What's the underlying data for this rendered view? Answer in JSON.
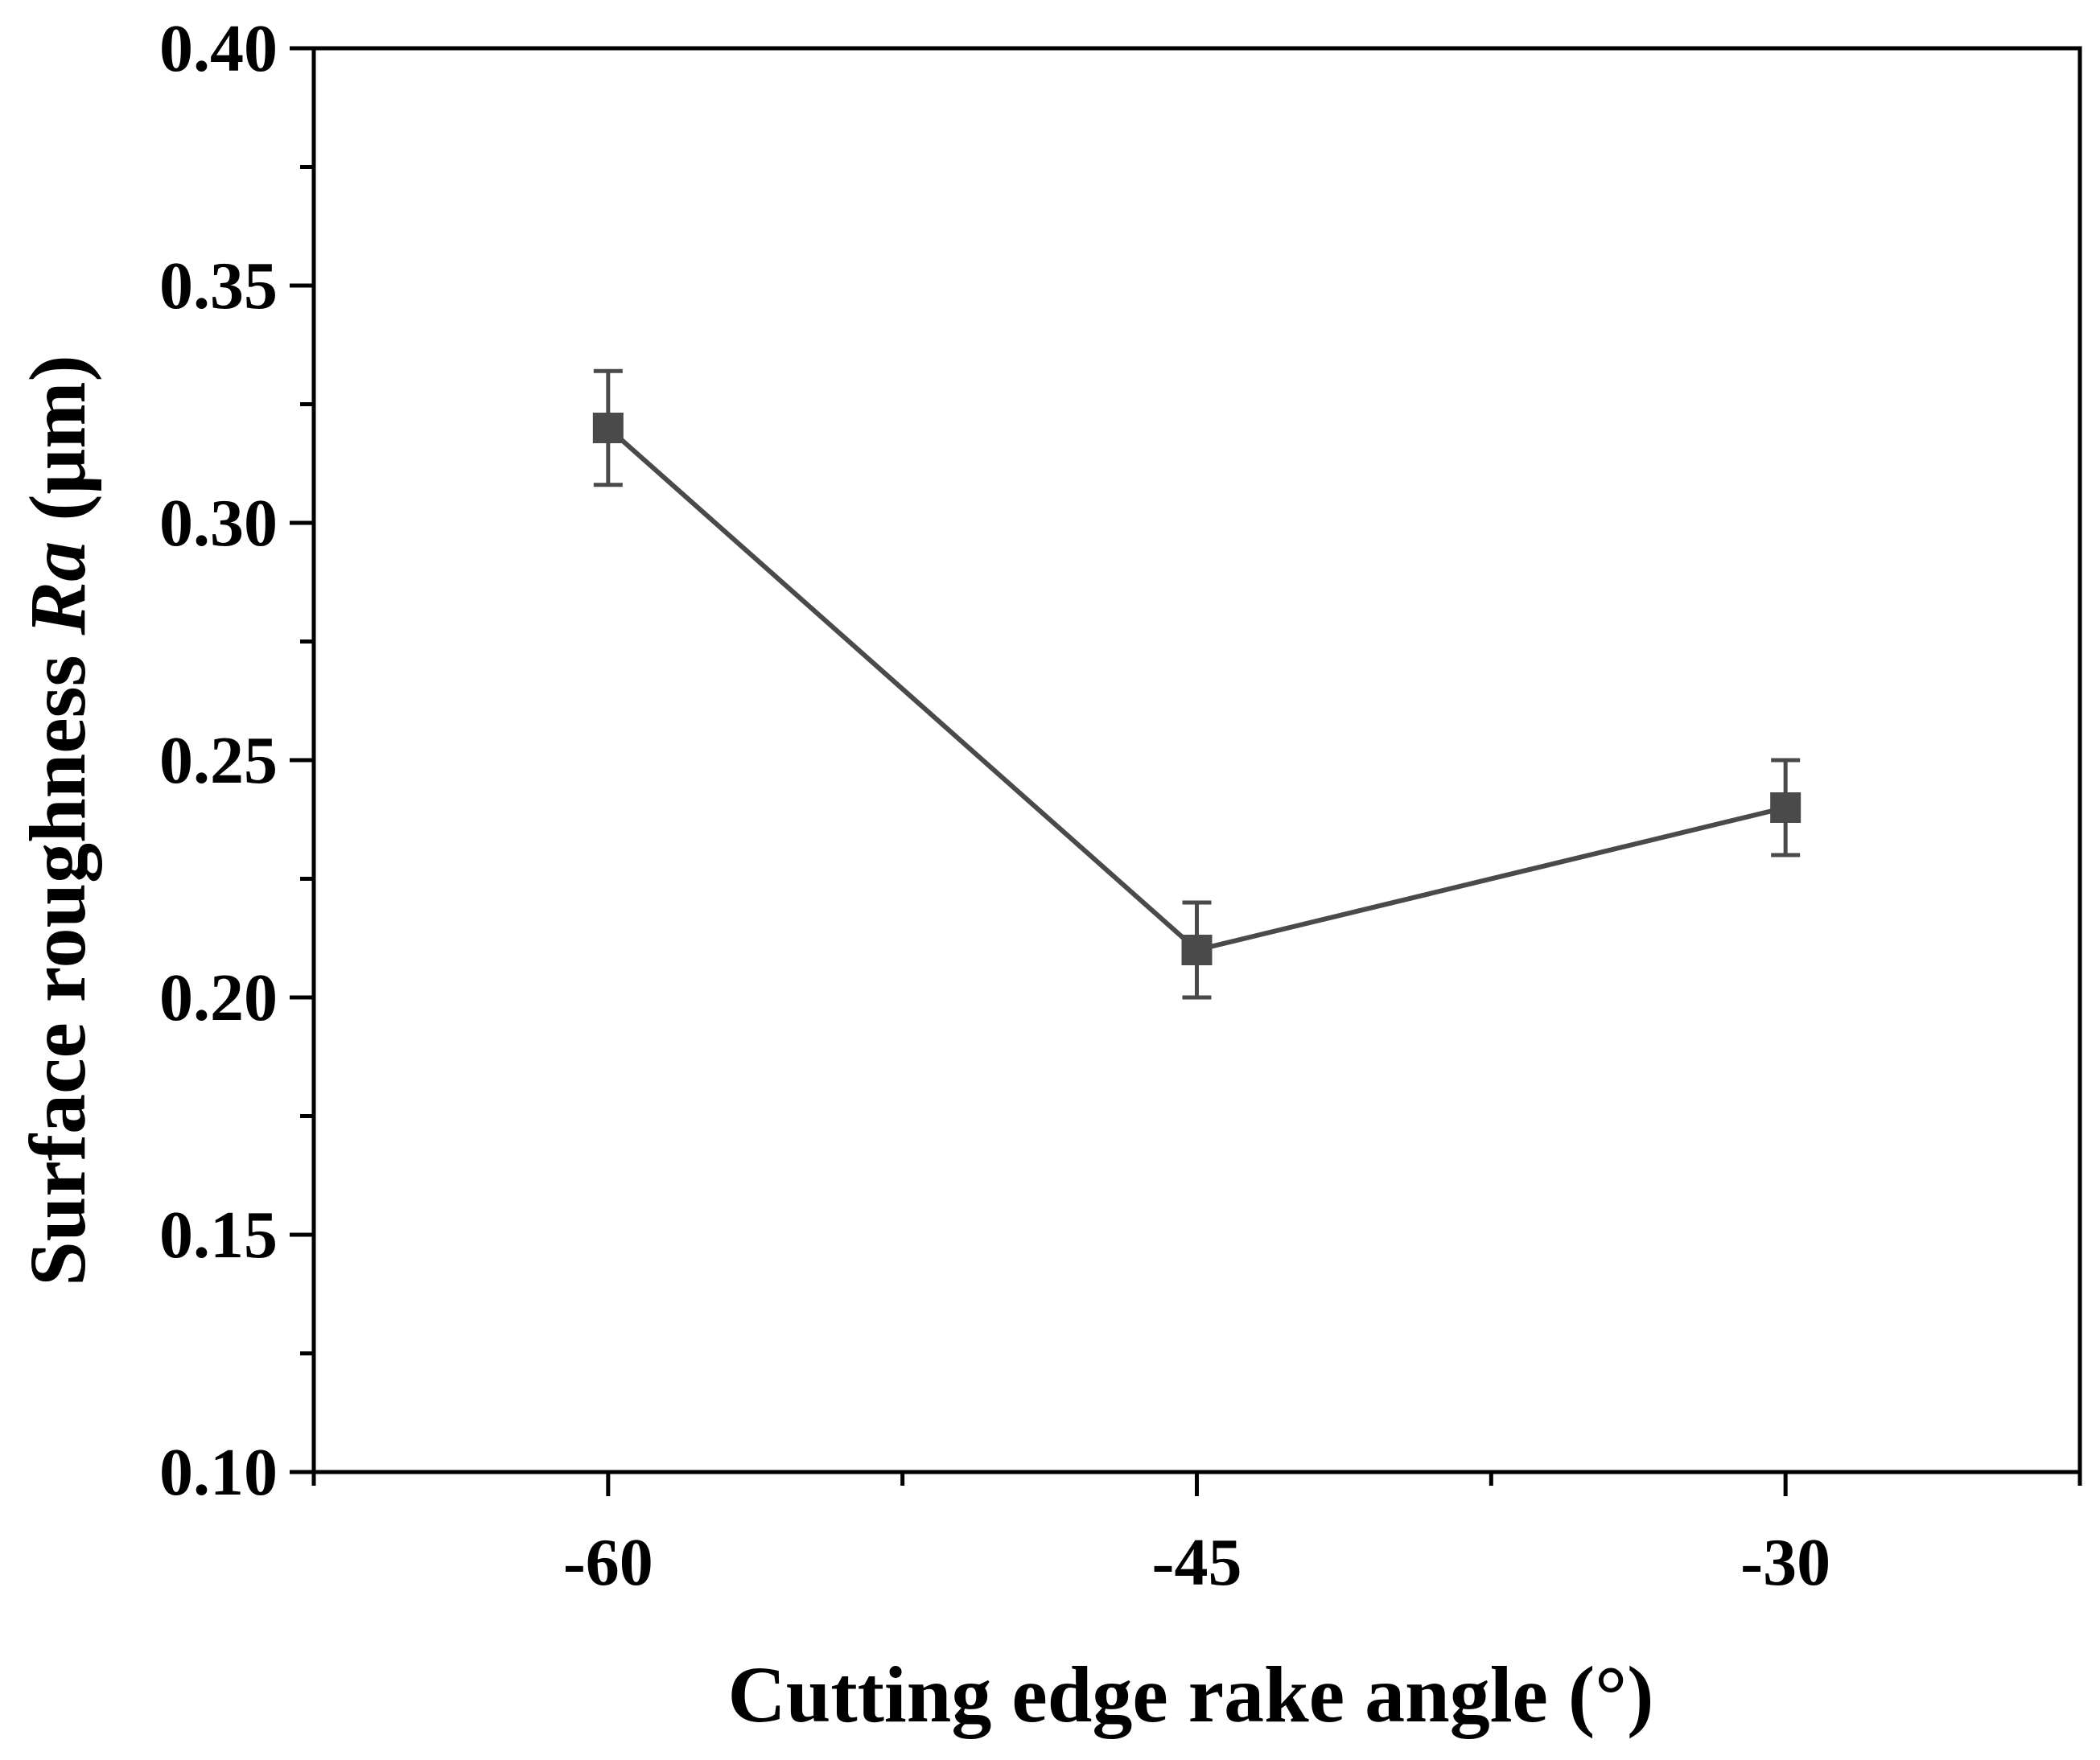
{
  "chart_data": {
    "type": "line",
    "title": "",
    "xlabel": "Cutting edge rake angle (°)",
    "ylabel_parts": [
      "Surface roughness ",
      "Ra",
      " (μm)"
    ],
    "x": [
      -60,
      -45,
      -30
    ],
    "x_ticks": [
      "-60",
      "-45",
      "-30"
    ],
    "xlim": [
      -67.5,
      -22.5
    ],
    "ylim": [
      0.1,
      0.4
    ],
    "y_ticks": [
      "0.10",
      "0.15",
      "0.20",
      "0.25",
      "0.30",
      "0.35",
      "0.40"
    ],
    "grid": false,
    "series": [
      {
        "values": [
          0.32,
          0.21,
          0.24
        ],
        "error": [
          0.012,
          0.01,
          0.01
        ],
        "marker": "square",
        "color": "#4a4a4a"
      }
    ]
  }
}
